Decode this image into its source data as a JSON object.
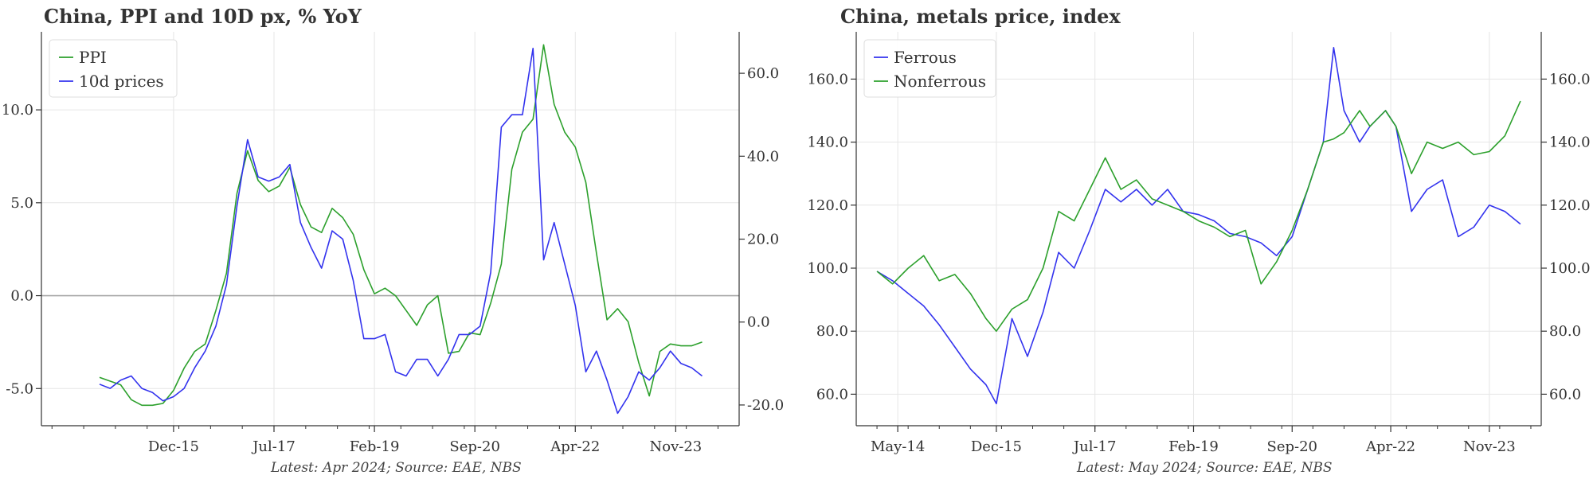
{
  "chart_data": [
    {
      "type": "line",
      "title": "China, PPI and 10D px, % YoY",
      "source": "Latest: Apr 2024; Source: EAE, NBS",
      "legend": {
        "placement": "top-left",
        "entries": [
          "PPI",
          "10d prices"
        ]
      },
      "grid": true,
      "x_ticks": [
        "Dec-15",
        "Jul-17",
        "Feb-19",
        "Sep-20",
        "Apr-22",
        "Nov-23"
      ],
      "y_left": {
        "ticks": [
          "10.0",
          "5.0",
          "0.0",
          "-5.0"
        ],
        "range": [
          -7,
          14.2
        ]
      },
      "y_right": {
        "ticks": [
          "60.0",
          "40.0",
          "20.0",
          "0.0",
          "-20.0"
        ],
        "range": [
          -25,
          70
        ]
      },
      "zero_line": 0,
      "series": [
        {
          "name": "PPI",
          "axis": "left",
          "color": "#2ca02c",
          "x": [
            "2014-10",
            "2014-12",
            "2015-02",
            "2015-04",
            "2015-06",
            "2015-08",
            "2015-10",
            "2015-12",
            "2016-02",
            "2016-04",
            "2016-06",
            "2016-08",
            "2016-10",
            "2016-12",
            "2017-02",
            "2017-04",
            "2017-06",
            "2017-08",
            "2017-10",
            "2017-12",
            "2018-02",
            "2018-04",
            "2018-06",
            "2018-08",
            "2018-10",
            "2018-12",
            "2019-02",
            "2019-04",
            "2019-06",
            "2019-08",
            "2019-10",
            "2019-12",
            "2020-02",
            "2020-04",
            "2020-06",
            "2020-08",
            "2020-10",
            "2020-12",
            "2021-02",
            "2021-04",
            "2021-06",
            "2021-08",
            "2021-10",
            "2021-12",
            "2022-02",
            "2022-04",
            "2022-06",
            "2022-08",
            "2022-10",
            "2022-12",
            "2023-02",
            "2023-04",
            "2023-06",
            "2023-08",
            "2023-10",
            "2023-12",
            "2024-02",
            "2024-04"
          ],
          "values": [
            -4.4,
            -4.6,
            -4.8,
            -5.6,
            -5.9,
            -5.9,
            -5.8,
            -5.1,
            -3.9,
            -3.0,
            -2.6,
            -0.8,
            1.2,
            5.5,
            7.8,
            6.2,
            5.6,
            5.9,
            6.9,
            4.9,
            3.7,
            3.4,
            4.7,
            4.2,
            3.3,
            1.4,
            0.1,
            0.4,
            0.0,
            -0.8,
            -1.6,
            -0.5,
            0.0,
            -3.1,
            -3.0,
            -2.0,
            -2.1,
            -0.4,
            1.7,
            6.8,
            8.8,
            9.5,
            13.5,
            10.3,
            8.8,
            8.0,
            6.1,
            2.3,
            -1.3,
            -0.7,
            -1.4,
            -3.6,
            -5.4,
            -3.0,
            -2.6,
            -2.7,
            -2.7,
            -2.5
          ]
        },
        {
          "name": "10d prices",
          "axis": "right",
          "color": "#3333ee",
          "x": [
            "2014-10",
            "2014-12",
            "2015-02",
            "2015-04",
            "2015-06",
            "2015-08",
            "2015-10",
            "2015-12",
            "2016-02",
            "2016-04",
            "2016-06",
            "2016-08",
            "2016-10",
            "2016-12",
            "2017-02",
            "2017-04",
            "2017-06",
            "2017-08",
            "2017-10",
            "2017-12",
            "2018-02",
            "2018-04",
            "2018-06",
            "2018-08",
            "2018-10",
            "2018-12",
            "2019-02",
            "2019-04",
            "2019-06",
            "2019-08",
            "2019-10",
            "2019-12",
            "2020-02",
            "2020-04",
            "2020-06",
            "2020-08",
            "2020-10",
            "2020-12",
            "2021-02",
            "2021-04",
            "2021-06",
            "2021-08",
            "2021-10",
            "2021-12",
            "2022-02",
            "2022-04",
            "2022-06",
            "2022-08",
            "2022-10",
            "2022-12",
            "2023-02",
            "2023-04",
            "2023-06",
            "2023-08",
            "2023-10",
            "2023-12",
            "2024-02",
            "2024-04"
          ],
          "values": [
            -15,
            -16,
            -14,
            -13,
            -16,
            -17,
            -19,
            -18,
            -16,
            -11,
            -7,
            -1,
            9,
            28,
            44,
            35,
            34,
            35,
            38,
            24,
            18,
            13,
            22,
            20,
            10,
            -4,
            -4,
            -3,
            -12,
            -13,
            -9,
            -9,
            -13,
            -9,
            -3,
            -3,
            -1,
            12,
            47,
            50,
            50,
            66,
            15,
            24,
            14,
            4,
            -12,
            -7,
            -14,
            -22,
            -18,
            -12,
            -14,
            -11,
            -7,
            -10,
            -11,
            -13
          ]
        }
      ]
    },
    {
      "type": "line",
      "title": "China, metals price, index",
      "source": "Latest: May 2024; Source: EAE, NBS",
      "legend": {
        "placement": "top-left",
        "entries": [
          "Ferrous",
          "Nonferrous"
        ]
      },
      "grid": true,
      "x_ticks": [
        "May-14",
        "Dec-15",
        "Jul-17",
        "Feb-19",
        "Sep-20",
        "Apr-22",
        "Nov-23"
      ],
      "y_left": {
        "ticks": [
          "160.0",
          "140.0",
          "120.0",
          "100.0",
          "80.0",
          "60.0"
        ],
        "range": [
          50,
          175
        ]
      },
      "y_right": {
        "ticks": [
          "160.0",
          "140.0",
          "120.0",
          "100.0",
          "80.0",
          "60.0"
        ],
        "range": [
          50,
          175
        ]
      },
      "series": [
        {
          "name": "Ferrous",
          "axis": "left",
          "color": "#3333ee",
          "x": [
            "2014-01",
            "2014-04",
            "2014-07",
            "2014-10",
            "2015-01",
            "2015-04",
            "2015-07",
            "2015-10",
            "2015-12",
            "2016-03",
            "2016-06",
            "2016-09",
            "2016-12",
            "2017-03",
            "2017-06",
            "2017-09",
            "2017-12",
            "2018-03",
            "2018-06",
            "2018-09",
            "2018-12",
            "2019-03",
            "2019-06",
            "2019-09",
            "2019-12",
            "2020-03",
            "2020-06",
            "2020-09",
            "2020-12",
            "2021-03",
            "2021-05",
            "2021-07",
            "2021-10",
            "2021-12",
            "2022-03",
            "2022-05",
            "2022-08",
            "2022-11",
            "2023-02",
            "2023-05",
            "2023-08",
            "2023-11",
            "2024-02",
            "2024-05"
          ],
          "values": [
            99,
            96,
            92,
            88,
            82,
            75,
            68,
            63,
            57,
            84,
            72,
            86,
            105,
            100,
            112,
            125,
            121,
            125,
            120,
            125,
            118,
            117,
            115,
            111,
            110,
            108,
            104,
            110,
            125,
            140,
            170,
            150,
            140,
            145,
            150,
            145,
            118,
            125,
            128,
            110,
            113,
            120,
            118,
            114
          ]
        },
        {
          "name": "Nonferrous",
          "axis": "right",
          "color": "#2ca02c",
          "x": [
            "2014-01",
            "2014-04",
            "2014-07",
            "2014-10",
            "2015-01",
            "2015-04",
            "2015-07",
            "2015-10",
            "2015-12",
            "2016-03",
            "2016-06",
            "2016-09",
            "2016-12",
            "2017-03",
            "2017-06",
            "2017-09",
            "2017-12",
            "2018-03",
            "2018-06",
            "2018-09",
            "2018-12",
            "2019-03",
            "2019-06",
            "2019-09",
            "2019-12",
            "2020-03",
            "2020-06",
            "2020-09",
            "2020-12",
            "2021-03",
            "2021-05",
            "2021-07",
            "2021-10",
            "2021-12",
            "2022-03",
            "2022-05",
            "2022-08",
            "2022-11",
            "2023-02",
            "2023-05",
            "2023-08",
            "2023-11",
            "2024-02",
            "2024-05"
          ],
          "values": [
            99,
            95,
            100,
            104,
            96,
            98,
            92,
            84,
            80,
            87,
            90,
            100,
            118,
            115,
            125,
            135,
            125,
            128,
            122,
            120,
            118,
            115,
            113,
            110,
            112,
            95,
            102,
            112,
            125,
            140,
            141,
            143,
            150,
            145,
            150,
            145,
            130,
            140,
            138,
            140,
            136,
            137,
            142,
            153
          ]
        }
      ]
    }
  ]
}
